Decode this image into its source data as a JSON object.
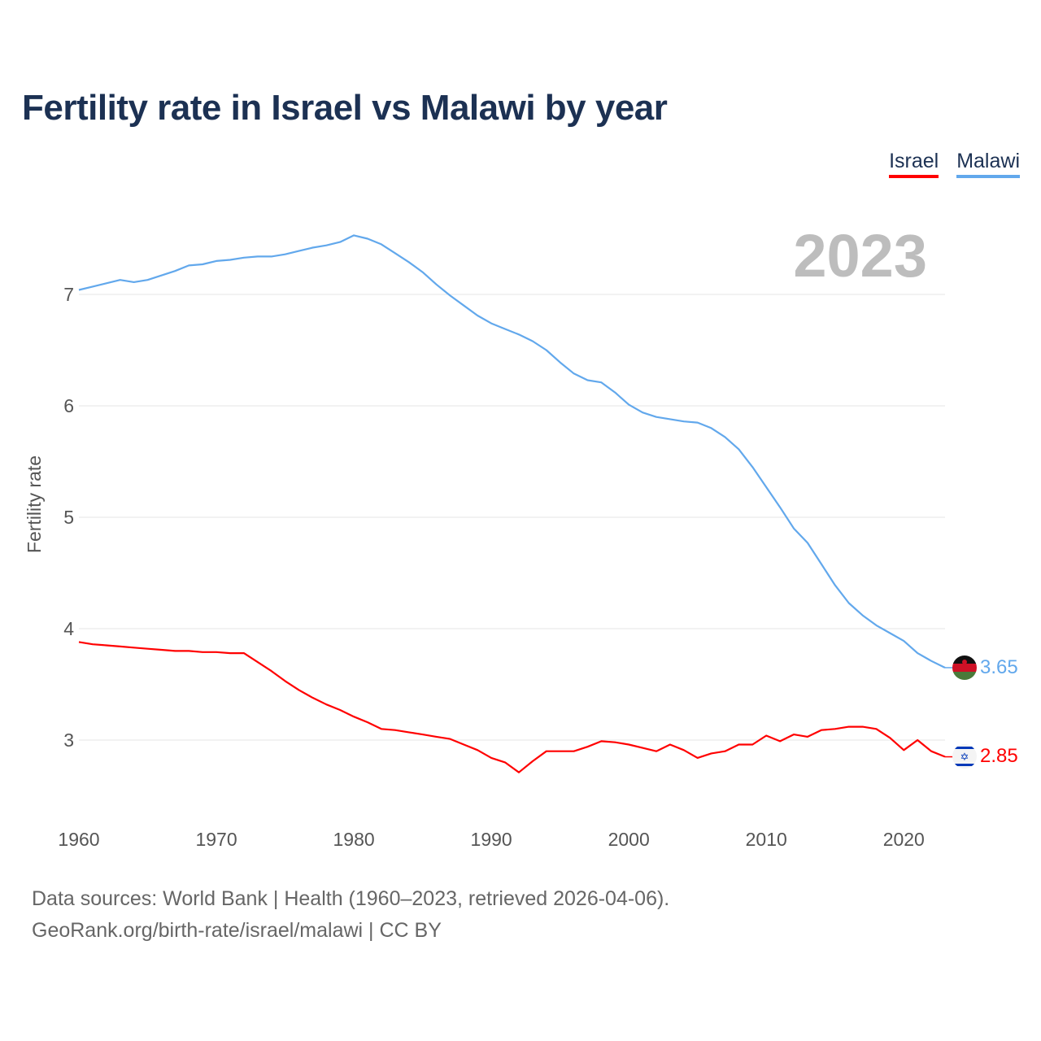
{
  "title": "Fertility rate in Israel vs Malawi by year",
  "legend": [
    {
      "label": "Israel",
      "color": "#ff0000"
    },
    {
      "label": "Malawi",
      "color": "#62a8ec"
    }
  ],
  "year_label": "2023",
  "footer": {
    "line1": "Data sources: World Bank | Health (1960–2023, retrieved 2026-04-06).",
    "line2": "GeoRank.org/birth-rate/israel/malawi | CC BY"
  },
  "chart_data": {
    "type": "line",
    "title": "Fertility rate in Israel vs Malawi by year",
    "xlabel": "",
    "ylabel": "Fertility rate",
    "xlim": [
      1960,
      2023
    ],
    "ylim": [
      2.45,
      7.75
    ],
    "x_ticks": [
      1960,
      1970,
      1980,
      1990,
      2000,
      2010,
      2020
    ],
    "x_tick_labels": [
      "1960",
      "1970",
      "1980",
      "1990",
      "2000",
      "2010",
      "2020"
    ],
    "y_ticks": [
      3,
      4,
      5,
      6,
      7
    ],
    "y_tick_labels": [
      "3",
      "4",
      "5",
      "6",
      "7"
    ],
    "grid": true,
    "legend_placement": "top-right",
    "x": [
      1960,
      1961,
      1962,
      1963,
      1964,
      1965,
      1966,
      1967,
      1968,
      1969,
      1970,
      1971,
      1972,
      1973,
      1974,
      1975,
      1976,
      1977,
      1978,
      1979,
      1980,
      1981,
      1982,
      1983,
      1984,
      1985,
      1986,
      1987,
      1988,
      1989,
      1990,
      1991,
      1992,
      1993,
      1994,
      1995,
      1996,
      1997,
      1998,
      1999,
      2000,
      2001,
      2002,
      2003,
      2004,
      2005,
      2006,
      2007,
      2008,
      2009,
      2010,
      2011,
      2012,
      2013,
      2014,
      2015,
      2016,
      2017,
      2018,
      2019,
      2020,
      2021,
      2022,
      2023
    ],
    "series": [
      {
        "name": "Israel",
        "color": "#ff0000",
        "end_label": "2.85",
        "values": [
          3.88,
          3.86,
          3.85,
          3.84,
          3.83,
          3.82,
          3.81,
          3.8,
          3.8,
          3.79,
          3.79,
          3.78,
          3.78,
          3.7,
          3.62,
          3.53,
          3.45,
          3.38,
          3.32,
          3.27,
          3.21,
          3.16,
          3.1,
          3.09,
          3.07,
          3.05,
          3.03,
          3.01,
          2.96,
          2.91,
          2.84,
          2.8,
          2.71,
          2.81,
          2.9,
          2.9,
          2.9,
          2.94,
          2.99,
          2.98,
          2.96,
          2.93,
          2.9,
          2.96,
          2.91,
          2.84,
          2.88,
          2.9,
          2.96,
          2.96,
          3.04,
          2.99,
          3.05,
          3.03,
          3.09,
          3.1,
          3.12,
          3.12,
          3.1,
          3.02,
          2.91,
          3.0,
          2.9,
          2.85
        ]
      },
      {
        "name": "Malawi",
        "color": "#62a8ec",
        "end_label": "3.65",
        "values": [
          7.04,
          7.07,
          7.1,
          7.13,
          7.11,
          7.13,
          7.17,
          7.21,
          7.26,
          7.27,
          7.3,
          7.31,
          7.33,
          7.34,
          7.34,
          7.36,
          7.39,
          7.42,
          7.44,
          7.47,
          7.53,
          7.5,
          7.45,
          7.37,
          7.29,
          7.2,
          7.09,
          6.99,
          6.9,
          6.81,
          6.74,
          6.69,
          6.64,
          6.58,
          6.5,
          6.39,
          6.29,
          6.23,
          6.21,
          6.12,
          6.01,
          5.94,
          5.9,
          5.88,
          5.86,
          5.85,
          5.8,
          5.72,
          5.61,
          5.45,
          5.27,
          5.09,
          4.9,
          4.77,
          4.58,
          4.39,
          4.23,
          4.12,
          4.03,
          3.96,
          3.89,
          3.78,
          3.71,
          3.65
        ]
      }
    ]
  }
}
